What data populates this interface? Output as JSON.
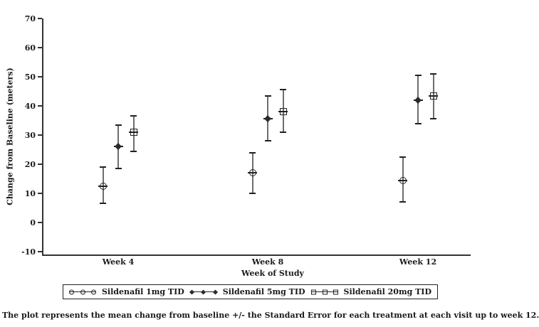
{
  "figure": {
    "caption": "The plot represents the mean change from baseline +/- the Standard Error for each treatment at each visit up to week 12."
  },
  "chart_data": {
    "type": "scatter",
    "subtype": "mean-with-standard-error-bars",
    "title": "",
    "xlabel": "Week of Study",
    "ylabel": "Change from Baseline (meters)",
    "categories": [
      "Week 4",
      "Week 8",
      "Week 12"
    ],
    "ylim": [
      -10,
      70
    ],
    "yticks": [
      70,
      60,
      50,
      40,
      30,
      20,
      10,
      0,
      -10
    ],
    "grid": false,
    "legend_position": "bottom-boxed",
    "series": [
      {
        "name": "Sildenafil 1mg TID",
        "marker": "circle",
        "means": [
          12.5,
          17,
          14.5
        ],
        "lower": [
          6.5,
          10,
          7
        ],
        "upper": [
          19,
          24,
          22.5
        ]
      },
      {
        "name": "Sildenafil 5mg TID",
        "marker": "diamond",
        "means": [
          26,
          35.5,
          42
        ],
        "lower": [
          18.5,
          28,
          34
        ],
        "upper": [
          33.5,
          43.5,
          50.5
        ]
      },
      {
        "name": "Sildenafil 20mg TID",
        "marker": "square",
        "means": [
          31,
          38,
          43.5
        ],
        "lower": [
          24.5,
          31,
          35.5
        ],
        "upper": [
          36.5,
          45.5,
          51
        ]
      }
    ],
    "palette": {
      "axis": "#333333",
      "error_bar": "#6e6e6e",
      "marker": "#222222",
      "text": "#1a1a1a",
      "background": "#ffffff"
    }
  }
}
